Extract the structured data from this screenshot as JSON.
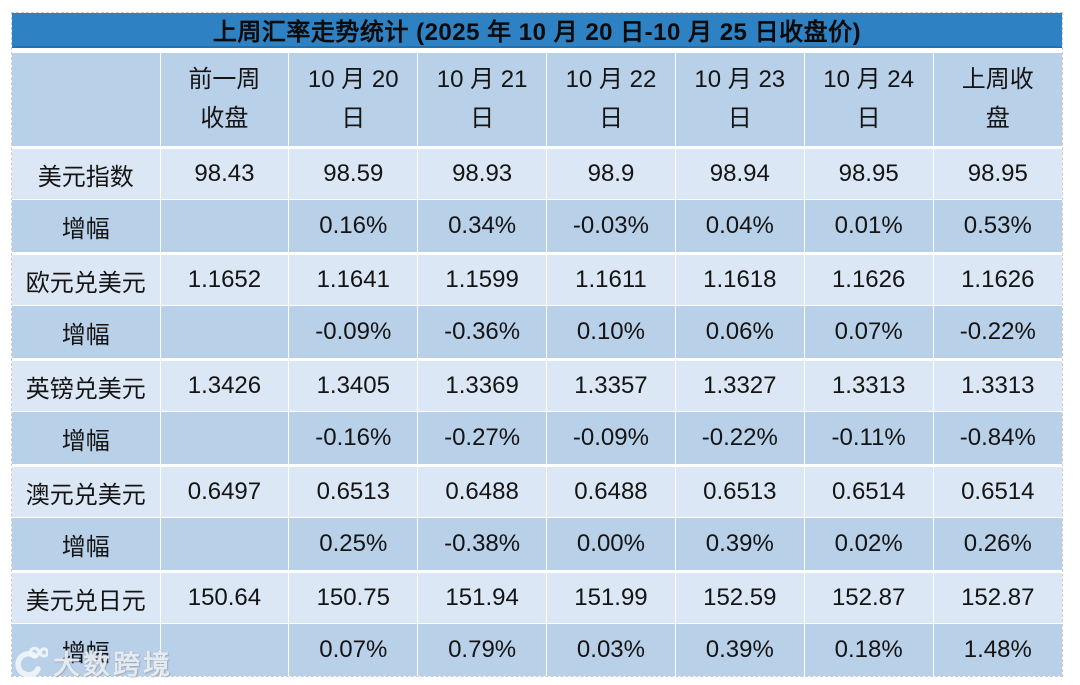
{
  "chart_data": {
    "type": "table",
    "title": "上周汇率走势统计 (2025 年 10 月 20 日-10 月 25 日收盘价)",
    "columns": [
      "",
      "前一周\n收盘",
      "10 月 20\n日",
      "10 月 21\n日",
      "10 月 22\n日",
      "10 月 23\n日",
      "10 月 24\n日",
      "上周收\n盘"
    ],
    "rows": [
      {
        "label": "美元指数",
        "kind": "value",
        "cells": [
          "98.43",
          "98.59",
          "98.93",
          "98.9",
          "98.94",
          "98.95",
          "98.95"
        ]
      },
      {
        "label": "增幅",
        "kind": "change",
        "cells": [
          "",
          "0.16%",
          "0.34%",
          "-0.03%",
          "0.04%",
          "0.01%",
          "0.53%"
        ]
      },
      {
        "label": "欧元兑美元",
        "kind": "value",
        "cells": [
          "1.1652",
          "1.1641",
          "1.1599",
          "1.1611",
          "1.1618",
          "1.1626",
          "1.1626"
        ]
      },
      {
        "label": "增幅",
        "kind": "change",
        "cells": [
          "",
          "-0.09%",
          "-0.36%",
          "0.10%",
          "0.06%",
          "0.07%",
          "-0.22%"
        ]
      },
      {
        "label": "英镑兑美元",
        "kind": "value",
        "cells": [
          "1.3426",
          "1.3405",
          "1.3369",
          "1.3357",
          "1.3327",
          "1.3313",
          "1.3313"
        ]
      },
      {
        "label": "增幅",
        "kind": "change",
        "cells": [
          "",
          "-0.16%",
          "-0.27%",
          "-0.09%",
          "-0.22%",
          "-0.11%",
          "-0.84%"
        ]
      },
      {
        "label": "澳元兑美元",
        "kind": "value",
        "cells": [
          "0.6497",
          "0.6513",
          "0.6488",
          "0.6488",
          "0.6513",
          "0.6514",
          "0.6514"
        ]
      },
      {
        "label": "增幅",
        "kind": "change",
        "cells": [
          "",
          "0.25%",
          "-0.38%",
          "0.00%",
          "0.39%",
          "0.02%",
          "0.26%"
        ]
      },
      {
        "label": "美元兑日元",
        "kind": "value",
        "cells": [
          "150.64",
          "150.75",
          "151.94",
          "151.99",
          "152.59",
          "152.87",
          "152.87"
        ]
      },
      {
        "label": "增幅",
        "kind": "change",
        "cells": [
          "",
          "0.07%",
          "0.79%",
          "0.03%",
          "0.39%",
          "0.18%",
          "1.48%"
        ]
      }
    ],
    "layout": {
      "grid": "dashed-white",
      "header_position": "top",
      "label_column_position": "left"
    }
  },
  "watermark": {
    "text": "大数跨境",
    "logo": "dashu-swirl-100-logo"
  },
  "colors": {
    "title_bg": "#2e81c3",
    "title_border_bottom": "#2272ae",
    "band_bg": "#b9d0e9",
    "light_row_bg": "#dbe7f4",
    "text": "#141414",
    "page_bg": "#ffffff",
    "watermark": "#f2f6fa"
  }
}
